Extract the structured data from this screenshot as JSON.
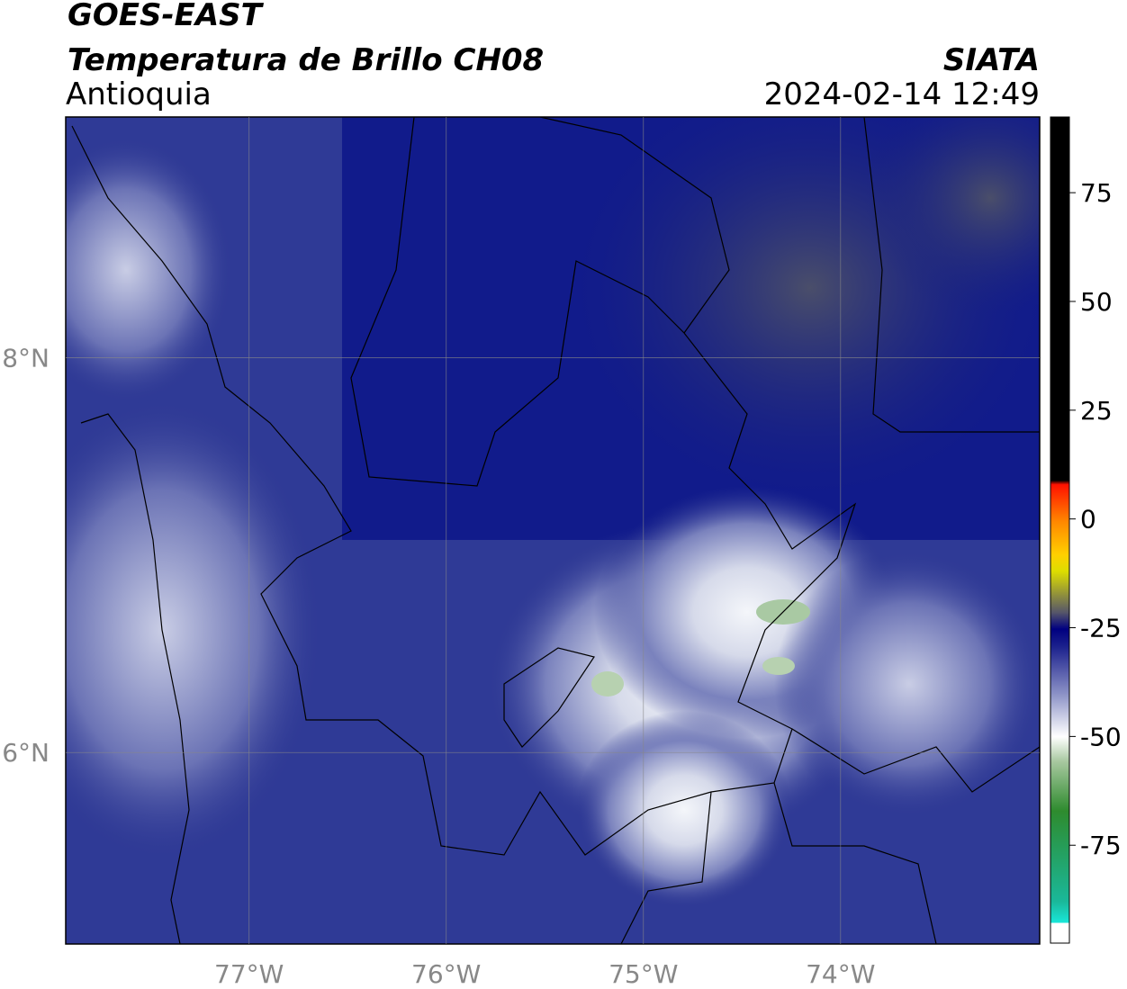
{
  "header": {
    "title": "GOES-EAST",
    "subtitle": "Temperatura de Brillo CH08",
    "region": "Antioquia",
    "agency": "SIATA",
    "datetime": "2024-02-14 12:49"
  },
  "map": {
    "xlim": [
      -77.93,
      -72.99
    ],
    "ylim": [
      5.03,
      9.22
    ],
    "lon_ticks": [
      {
        "value": -77,
        "label": "77°W"
      },
      {
        "value": -76,
        "label": "76°W"
      },
      {
        "value": -75,
        "label": "75°W"
      },
      {
        "value": -74,
        "label": "74°W"
      }
    ],
    "lat_ticks": [
      {
        "value": 8,
        "label": "8°N"
      },
      {
        "value": 6,
        "label": "6°N"
      }
    ]
  },
  "colorbar": {
    "lim": [
      -97.5,
      92.4
    ],
    "ticks": [
      75,
      50,
      25,
      0,
      -25,
      -50,
      -75
    ]
  }
}
